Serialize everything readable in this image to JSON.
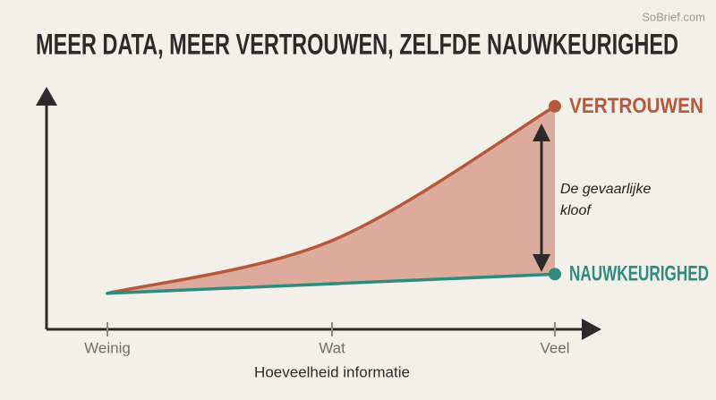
{
  "watermark": "SoBrief.com",
  "chart_data": {
    "type": "line",
    "title": "MEER DATA, MEER VERTROUWEN, ZELFDE NAUWKEURIGHED",
    "xlabel": "Hoeveelheid informatie",
    "categories": [
      "Weinig",
      "Wat",
      "Veel"
    ],
    "series": [
      {
        "name": "VERTROUWEN",
        "color": "#b5593a",
        "values": [
          15,
          37,
          93
        ]
      },
      {
        "name": "NAUWKEURIGHED",
        "color": "#2e8b7e",
        "values": [
          15,
          19,
          23
        ]
      }
    ],
    "gap_color": "#dcab9b",
    "annotation": [
      "De gevaarlijke",
      "kloof"
    ],
    "ylim": [
      0,
      100
    ]
  }
}
